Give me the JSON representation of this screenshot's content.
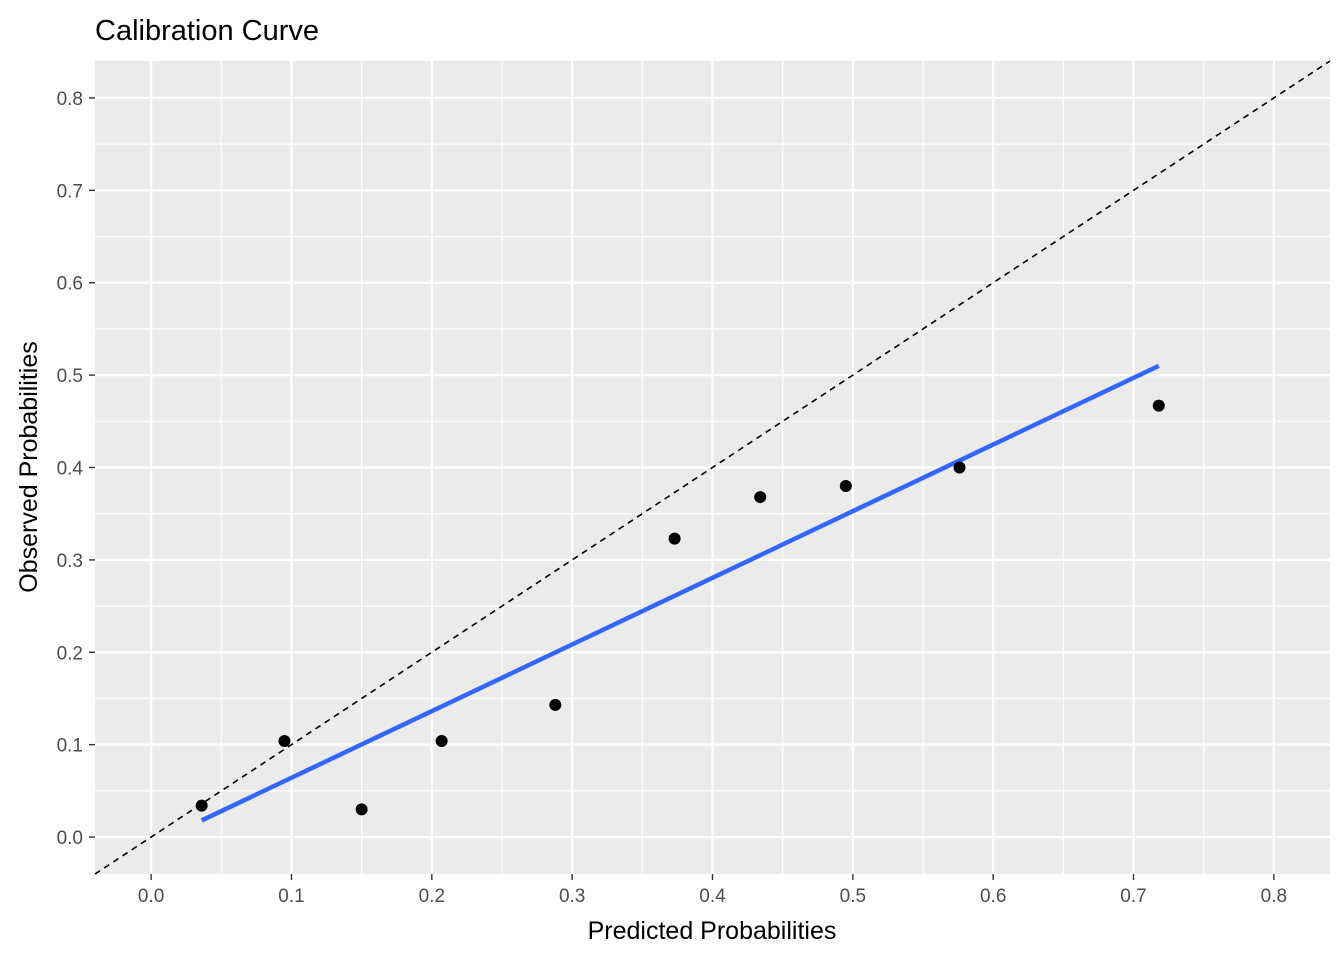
{
  "chart_data": {
    "type": "scatter",
    "title": "Calibration Curve",
    "xlabel": "Predicted Probabilities",
    "ylabel": "Observed Probabilities",
    "xlim": [
      -0.04,
      0.84
    ],
    "ylim": [
      -0.04,
      0.84
    ],
    "x_ticks": [
      0.0,
      0.1,
      0.2,
      0.3,
      0.4,
      0.5,
      0.6,
      0.7,
      0.8
    ],
    "y_ticks": [
      0.0,
      0.1,
      0.2,
      0.3,
      0.4,
      0.5,
      0.6,
      0.7,
      0.8
    ],
    "x_tick_labels": [
      "0.0",
      "0.1",
      "0.2",
      "0.3",
      "0.4",
      "0.5",
      "0.6",
      "0.7",
      "0.8"
    ],
    "y_tick_labels": [
      "0.0",
      "0.1",
      "0.2",
      "0.3",
      "0.4",
      "0.5",
      "0.6",
      "0.7",
      "0.8"
    ],
    "grid": true,
    "points": {
      "x": [
        0.036,
        0.095,
        0.15,
        0.207,
        0.288,
        0.373,
        0.434,
        0.495,
        0.576,
        0.718
      ],
      "y": [
        0.034,
        0.104,
        0.03,
        0.104,
        0.143,
        0.323,
        0.368,
        0.38,
        0.4,
        0.467
      ]
    },
    "fit_line": {
      "x": [
        0.036,
        0.718
      ],
      "y": [
        0.018,
        0.51
      ],
      "color": "#3366ff"
    },
    "reference_line": {
      "slope": 1,
      "intercept": 0,
      "style": "dashed",
      "color": "#000000"
    },
    "panel_background": "#ebebeb",
    "grid_color": "#ffffff",
    "point_color": "#000000"
  }
}
